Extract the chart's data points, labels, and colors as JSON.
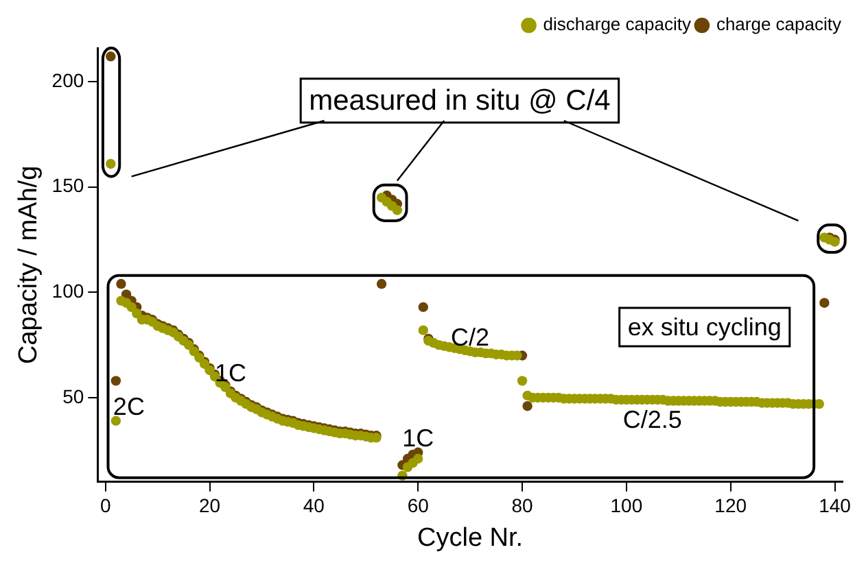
{
  "chart_data": {
    "type": "scatter",
    "xlabel": "Cycle Nr.",
    "ylabel": "Capacity / mAh/g",
    "x": [
      1,
      2,
      3,
      4,
      5,
      6,
      7,
      8,
      9,
      10,
      11,
      12,
      13,
      14,
      15,
      16,
      17,
      18,
      19,
      20,
      21,
      22,
      23,
      24,
      25,
      26,
      27,
      28,
      29,
      30,
      31,
      32,
      33,
      34,
      35,
      36,
      37,
      38,
      39,
      40,
      41,
      42,
      43,
      44,
      45,
      46,
      47,
      48,
      49,
      50,
      51,
      52,
      53,
      54,
      55,
      56,
      57,
      58,
      59,
      60,
      61,
      62,
      63,
      64,
      65,
      66,
      67,
      68,
      69,
      70,
      71,
      72,
      73,
      74,
      75,
      76,
      77,
      78,
      79,
      80,
      81,
      82,
      83,
      84,
      85,
      86,
      87,
      88,
      89,
      90,
      91,
      92,
      93,
      94,
      95,
      96,
      97,
      98,
      99,
      100,
      101,
      102,
      103,
      104,
      105,
      106,
      107,
      108,
      109,
      110,
      111,
      112,
      113,
      114,
      115,
      116,
      117,
      118,
      119,
      120,
      121,
      122,
      123,
      124,
      125,
      126,
      127,
      128,
      129,
      130,
      131,
      132,
      133,
      134,
      135,
      136,
      137,
      138,
      139,
      140
    ],
    "series": [
      {
        "name": "charge capacity",
        "color": "#6b4508",
        "values": [
          212,
          58,
          104,
          99,
          96,
          93,
          89,
          88,
          87,
          85,
          84,
          83,
          82,
          80,
          78,
          76,
          73,
          70,
          67,
          64,
          61,
          58,
          56,
          53,
          51,
          49.5,
          48,
          46.5,
          45.5,
          44,
          43,
          42,
          41,
          40,
          39.5,
          39,
          38,
          37.5,
          37,
          36.5,
          36,
          35.5,
          35,
          34.5,
          34,
          34,
          33.5,
          33,
          33,
          32.5,
          32,
          32,
          104,
          146,
          144,
          142,
          18,
          21,
          23,
          24,
          93,
          78,
          null,
          null,
          null,
          null,
          null,
          null,
          null,
          null,
          null,
          null,
          null,
          null,
          null,
          null,
          null,
          null,
          null,
          70,
          46,
          null,
          null,
          null,
          null,
          null,
          null,
          null,
          null,
          null,
          null,
          null,
          null,
          null,
          null,
          null,
          null,
          null,
          null,
          null,
          null,
          null,
          null,
          null,
          null,
          null,
          null,
          null,
          null,
          null,
          null,
          null,
          null,
          null,
          null,
          null,
          null,
          null,
          null,
          null,
          null,
          null,
          null,
          null,
          null,
          null,
          null,
          null,
          null,
          null,
          null,
          null,
          null,
          null,
          null,
          null,
          null,
          95,
          126,
          125
        ]
      },
      {
        "name": "discharge capacity",
        "color": "#9c9c00",
        "values": [
          161,
          39,
          96,
          95,
          93,
          90,
          87,
          87,
          86,
          84,
          83,
          82,
          81,
          79,
          77,
          75,
          72,
          69,
          66,
          63,
          60,
          57,
          55,
          52,
          50,
          48.5,
          47,
          45.5,
          44.5,
          43,
          42,
          41,
          40,
          39,
          38.5,
          38,
          37,
          36.5,
          36,
          35.5,
          35,
          34.5,
          34,
          33.5,
          33,
          33,
          32.5,
          32,
          32,
          31.5,
          31,
          31,
          145,
          143,
          141,
          139,
          13,
          17,
          19,
          21,
          82,
          77,
          76,
          75,
          74.5,
          74,
          73.5,
          73,
          72.5,
          72,
          71.5,
          71.5,
          71,
          71,
          70.5,
          70.5,
          70,
          70,
          70,
          58,
          51,
          50,
          50,
          50,
          50,
          50,
          50,
          49.5,
          49.5,
          49.5,
          49.5,
          49.5,
          49.5,
          49.5,
          49.5,
          49.5,
          49.5,
          49,
          49,
          49,
          49,
          49,
          49,
          49,
          49,
          49,
          49,
          48.5,
          48.5,
          48.5,
          48.5,
          48.5,
          48.5,
          48.5,
          48.5,
          48.5,
          48.5,
          48,
          48,
          48,
          48,
          48,
          48,
          48,
          48,
          47.5,
          47.5,
          47.5,
          47.5,
          47.5,
          47.5,
          47,
          47,
          47,
          47,
          47,
          47,
          126,
          125,
          124
        ]
      }
    ],
    "xlim": [
      -1.5,
      141.5
    ],
    "xticks": [
      0,
      20,
      40,
      60,
      80,
      100,
      120,
      140
    ],
    "ylim": [
      10,
      216
    ],
    "yticks": [
      50,
      100,
      150,
      200
    ],
    "grid": false,
    "legend": "top right",
    "marker": "circle",
    "annotations": [
      "2C",
      "1C",
      "1C",
      "C/2",
      "C/2.5",
      "measured in situ @ C/4",
      "ex situ cycling"
    ]
  }
}
